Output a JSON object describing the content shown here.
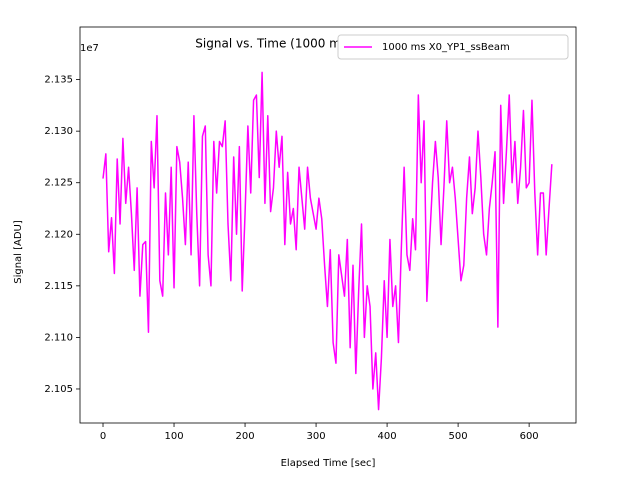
{
  "chart_data": {
    "type": "line",
    "title": "Signal vs. Time (1000 ms | X0_YP1_ssBeam)",
    "x_label": "Elapsed Time [sec]",
    "y_label": "Signal [ADU]",
    "y_offset_label": "1e7",
    "xlim": [
      -32.4,
      666
    ],
    "ylim": [
      21017000,
      21401000
    ],
    "xticks": [
      0,
      100,
      200,
      300,
      400,
      500,
      600
    ],
    "yticks": [
      {
        "value": 21050000,
        "label": "2.105"
      },
      {
        "value": 21100000,
        "label": "2.110"
      },
      {
        "value": 21150000,
        "label": "2.115"
      },
      {
        "value": 21200000,
        "label": "2.120"
      },
      {
        "value": 21250000,
        "label": "2.125"
      },
      {
        "value": 21300000,
        "label": "2.130"
      },
      {
        "value": 21350000,
        "label": "2.135"
      }
    ],
    "legend": "upper right",
    "x": [
      0,
      4,
      8,
      12,
      16,
      20,
      24,
      28,
      32,
      36,
      40,
      44,
      48,
      52,
      56,
      60,
      64,
      68,
      72,
      76,
      80,
      84,
      88,
      92,
      96,
      100,
      104,
      108,
      112,
      116,
      120,
      124,
      128,
      132,
      136,
      140,
      144,
      148,
      152,
      156,
      160,
      164,
      168,
      172,
      176,
      180,
      184,
      188,
      192,
      196,
      200,
      204,
      208,
      212,
      216,
      220,
      224,
      228,
      232,
      236,
      240,
      244,
      248,
      252,
      256,
      260,
      264,
      268,
      272,
      276,
      280,
      284,
      288,
      292,
      296,
      300,
      304,
      308,
      312,
      316,
      320,
      324,
      328,
      332,
      336,
      340,
      344,
      348,
      352,
      356,
      360,
      364,
      368,
      372,
      376,
      380,
      384,
      388,
      392,
      396,
      400,
      404,
      408,
      412,
      416,
      420,
      424,
      428,
      432,
      436,
      440,
      444,
      448,
      452,
      456,
      460,
      464,
      468,
      472,
      476,
      480,
      484,
      488,
      492,
      496,
      500,
      504,
      508,
      512,
      516,
      520,
      524,
      528,
      532,
      536,
      540,
      544,
      548,
      552,
      556,
      560,
      564,
      568,
      572,
      576,
      580,
      584,
      588,
      592,
      596,
      600,
      604,
      608,
      612,
      616,
      620,
      624,
      628,
      632
    ],
    "series": [
      {
        "name": "1000 ms X0_YP1_ssBeam",
        "color": "#ff00ff",
        "values": [
          21254000,
          21278000,
          21183000,
          21216000,
          21162000,
          21273000,
          21210000,
          21293000,
          21230000,
          21265000,
          21220000,
          21165000,
          21245000,
          21140000,
          21190000,
          21193000,
          21105000,
          21290000,
          21245000,
          21315000,
          21155000,
          21140000,
          21240000,
          21180000,
          21265000,
          21148000,
          21285000,
          21270000,
          21235000,
          21190000,
          21270000,
          21180000,
          21315000,
          21220000,
          21150000,
          21295000,
          21305000,
          21180000,
          21150000,
          21290000,
          21240000,
          21290000,
          21285000,
          21310000,
          21210000,
          21155000,
          21275000,
          21200000,
          21285000,
          21145000,
          21220000,
          21305000,
          21240000,
          21330000,
          21335000,
          21255000,
          21357000,
          21230000,
          21315000,
          21222000,
          21245000,
          21300000,
          21265000,
          21295000,
          21190000,
          21260000,
          21210000,
          21225000,
          21185000,
          21265000,
          21235000,
          21205000,
          21265000,
          21235000,
          21220000,
          21205000,
          21235000,
          21215000,
          21170000,
          21130000,
          21185000,
          21095000,
          21075000,
          21180000,
          21160000,
          21140000,
          21195000,
          21090000,
          21170000,
          21065000,
          21145000,
          21210000,
          21100000,
          21150000,
          21130000,
          21050000,
          21085000,
          21030000,
          21080000,
          21155000,
          21100000,
          21195000,
          21130000,
          21150000,
          21095000,
          21185000,
          21265000,
          21180000,
          21165000,
          21215000,
          21185000,
          21335000,
          21250000,
          21310000,
          21135000,
          21195000,
          21250000,
          21290000,
          21255000,
          21190000,
          21245000,
          21310000,
          21250000,
          21265000,
          21235000,
          21195000,
          21155000,
          21170000,
          21235000,
          21275000,
          21220000,
          21245000,
          21300000,
          21255000,
          21200000,
          21180000,
          21225000,
          21250000,
          21280000,
          21110000,
          21325000,
          21230000,
          21280000,
          21335000,
          21250000,
          21290000,
          21230000,
          21265000,
          21320000,
          21245000,
          21250000,
          21330000,
          21240000,
          21180000,
          21240000,
          21240000,
          21180000,
          21225000,
          21268000
        ]
      }
    ]
  }
}
